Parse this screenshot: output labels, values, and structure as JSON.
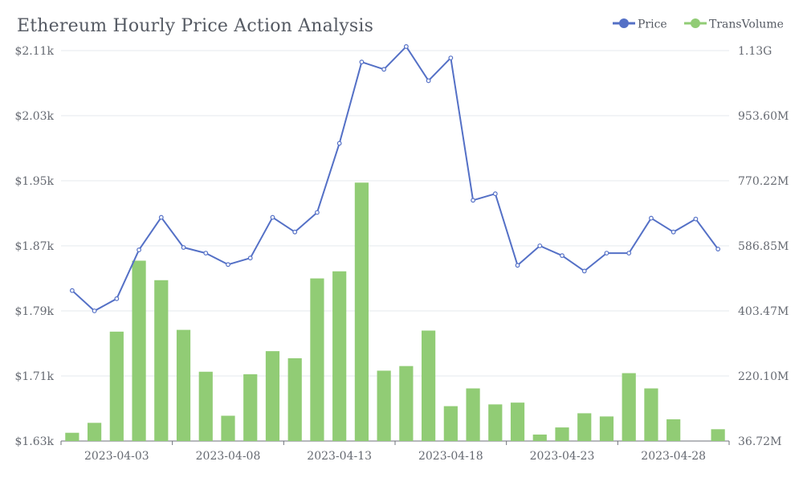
{
  "chart_data": {
    "type": "bar+line",
    "title": "Ethereum Hourly Price Action Analysis",
    "legend": [
      "Price",
      "TransVolume"
    ],
    "legend_position": "top-right",
    "grid": true,
    "colors": {
      "price": "#5470c6",
      "volume": "#91cc75"
    },
    "x": [
      "2023-04-01",
      "2023-04-02",
      "2023-04-03",
      "2023-04-04",
      "2023-04-05",
      "2023-04-06",
      "2023-04-07",
      "2023-04-08",
      "2023-04-09",
      "2023-04-10",
      "2023-04-11",
      "2023-04-12",
      "2023-04-13",
      "2023-04-14",
      "2023-04-15",
      "2023-04-16",
      "2023-04-17",
      "2023-04-18",
      "2023-04-19",
      "2023-04-20",
      "2023-04-21",
      "2023-04-22",
      "2023-04-23",
      "2023-04-24",
      "2023-04-25",
      "2023-04-26",
      "2023-04-27",
      "2023-04-28",
      "2023-04-29",
      "2023-04-30"
    ],
    "x_tick_labels": [
      "2023-04-03",
      "2023-04-08",
      "2023-04-13",
      "2023-04-18",
      "2023-04-23",
      "2023-04-28"
    ],
    "y_left": {
      "name": "Price",
      "ticks": [
        "$1.63k",
        "$1.71k",
        "$1.79k",
        "$1.87k",
        "$1.95k",
        "$2.03k",
        "$2.11k"
      ],
      "min": 1630,
      "max": 2110
    },
    "y_right": {
      "name": "TransVolume",
      "ticks": [
        "36.72M",
        "220.10M",
        "403.47M",
        "586.85M",
        "770.22M",
        "953.60M",
        "1.13G"
      ],
      "min": 36.72,
      "max": 1137
    },
    "series": [
      {
        "name": "Price",
        "type": "line",
        "axis": "left",
        "values": [
          1815,
          1790,
          1805,
          1865,
          1905,
          1868,
          1861,
          1847,
          1855,
          1905,
          1887,
          1911,
          1996,
          2096,
          2087,
          2115,
          2073,
          2101,
          1926,
          1934,
          1846,
          1870,
          1858,
          1839,
          1861,
          1861,
          1904,
          1887,
          1903,
          1866
        ]
      },
      {
        "name": "TransVolume",
        "type": "bar",
        "axis": "right",
        "values": [
          60,
          88,
          345,
          545,
          490,
          350,
          232,
          108,
          225,
          290,
          270,
          495,
          515,
          765,
          235,
          248,
          348,
          135,
          185,
          140,
          145,
          55,
          75,
          115,
          106,
          228,
          185,
          98,
          36.72,
          70
        ]
      }
    ]
  }
}
